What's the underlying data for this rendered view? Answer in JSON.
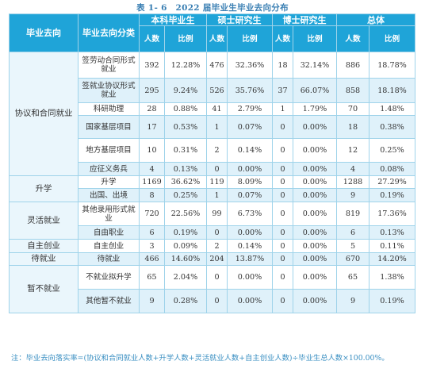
{
  "caption": "表 1- 6　2022 届毕业生毕业去向分布",
  "header": {
    "col1": "毕业去向",
    "col2": "毕业去向分类",
    "groups": [
      "本科毕业生",
      "硕士研究生",
      "博士研究生",
      "总体"
    ],
    "count": "人数",
    "ratio": "比例"
  },
  "rows": [
    {
      "cat": "协议和合同就业",
      "sub": "签劳动合同形式就业",
      "vals": [
        "392",
        "12.28%",
        "476",
        "32.36%",
        "18",
        "32.14%",
        "886",
        "18.78%"
      ]
    },
    {
      "cat": "",
      "sub": "签就业协议形式就业",
      "vals": [
        "295",
        "9.24%",
        "526",
        "35.76%",
        "37",
        "66.07%",
        "858",
        "18.18%"
      ]
    },
    {
      "cat": "",
      "sub": "科研助理",
      "vals": [
        "28",
        "0.88%",
        "41",
        "2.79%",
        "1",
        "1.79%",
        "70",
        "1.48%"
      ]
    },
    {
      "cat": "",
      "sub": "国家基层项目",
      "vals": [
        "17",
        "0.53%",
        "1",
        "0.07%",
        "0",
        "0.00%",
        "18",
        "0.38%"
      ]
    },
    {
      "cat": "",
      "sub": "地方基层项目",
      "vals": [
        "10",
        "0.31%",
        "2",
        "0.14%",
        "0",
        "0.00%",
        "12",
        "0.25%"
      ]
    },
    {
      "cat": "",
      "sub": "应征义务兵",
      "vals": [
        "4",
        "0.13%",
        "0",
        "0.00%",
        "0",
        "0.00%",
        "4",
        "0.08%"
      ]
    },
    {
      "cat": "升学",
      "sub": "升学",
      "vals": [
        "1169",
        "36.62%",
        "119",
        "8.09%",
        "0",
        "0.00%",
        "1288",
        "27.29%"
      ]
    },
    {
      "cat": "",
      "sub": "出国、出境",
      "vals": [
        "8",
        "0.25%",
        "1",
        "0.07%",
        "0",
        "0.00%",
        "9",
        "0.19%"
      ]
    },
    {
      "cat": "灵活就业",
      "sub": "其他录用形式就业",
      "vals": [
        "720",
        "22.56%",
        "99",
        "6.73%",
        "0",
        "0.00%",
        "819",
        "17.36%"
      ]
    },
    {
      "cat": "",
      "sub": "自由职业",
      "vals": [
        "6",
        "0.19%",
        "0",
        "0.00%",
        "0",
        "0.00%",
        "6",
        "0.13%"
      ]
    },
    {
      "cat": "自主创业",
      "sub": "自主创业",
      "vals": [
        "3",
        "0.09%",
        "2",
        "0.14%",
        "0",
        "0.00%",
        "5",
        "0.11%"
      ]
    },
    {
      "cat": "待就业",
      "sub": "待就业",
      "vals": [
        "466",
        "14.60%",
        "204",
        "13.87%",
        "0",
        "0.00%",
        "670",
        "14.20%"
      ]
    },
    {
      "cat": "暂不就业",
      "sub": "不就业拟升学",
      "vals": [
        "65",
        "2.04%",
        "0",
        "0.00%",
        "0",
        "0.00%",
        "65",
        "1.38%"
      ]
    },
    {
      "cat": "",
      "sub": "其他暂不就业",
      "vals": [
        "9",
        "0.28%",
        "0",
        "0.00%",
        "0",
        "0.00%",
        "9",
        "0.19%"
      ]
    }
  ],
  "note": "注：毕业去向落实率=(协议和合同就业人数+升学人数+灵活就业人数+自主创业人数)÷毕业生总人数×100.00%。"
}
